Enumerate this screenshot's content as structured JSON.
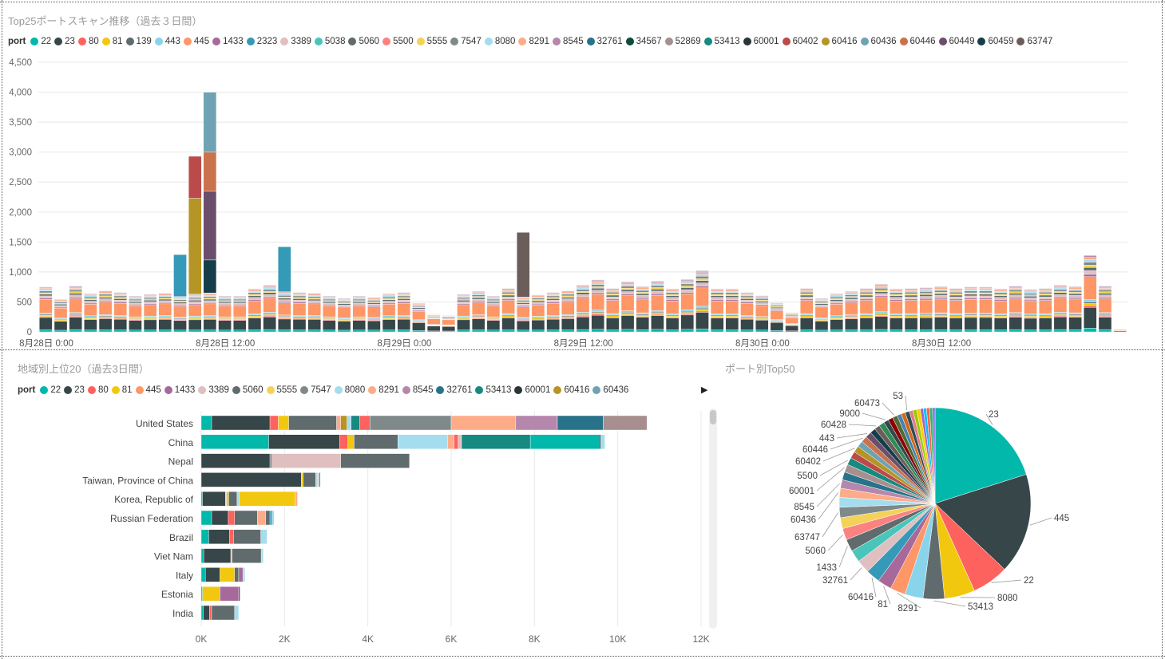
{
  "colors": {
    "22": "#01b8aa",
    "23": "#374649",
    "80": "#fd625e",
    "81": "#f2c80f",
    "139": "#5f6b6d",
    "443": "#8ad4eb",
    "445": "#fe9666",
    "1433": "#a66999",
    "2323": "#3599b8",
    "3389": "#dfbfbf",
    "5038": "#4ac5bb",
    "5060": "#5f6b6d",
    "5500": "#fb8281",
    "5555": "#f4d25a",
    "7547": "#7f898a",
    "8080": "#a4ddee",
    "8291": "#fdab89",
    "8545": "#b687ac",
    "32761": "#28738a",
    "34567": "#0d4b3e",
    "52869": "#a78f8f",
    "53413": "#168980",
    "60001": "#293537",
    "60402": "#bb4a4a",
    "60416": "#b59525",
    "60436": "#6fa3b3",
    "60446": "#c9724b",
    "60449": "#6b4e6b",
    "60459": "#163e4a",
    "63747": "#6b5d5a"
  },
  "chart_data": [
    {
      "type": "bar",
      "title": "Top25ポートスキャン推移（過去３日間）",
      "legend_title": "port",
      "legend": [
        "22",
        "23",
        "80",
        "81",
        "139",
        "443",
        "445",
        "1433",
        "2323",
        "3389",
        "5038",
        "5060",
        "5500",
        "5555",
        "7547",
        "8080",
        "8291",
        "8545",
        "32761",
        "34567",
        "52869",
        "53413",
        "60001",
        "60402",
        "60416",
        "60436",
        "60446",
        "60449",
        "60459",
        "63747"
      ],
      "x_ticks": [
        "8月28日 0:00",
        "8月28日 12:00",
        "8月29日 0:00",
        "8月29日 12:00",
        "8月30日 0:00",
        "8月30日 12:00"
      ],
      "y_ticks": [
        "0",
        "500",
        "1,000",
        "1,500",
        "2,000",
        "2,500",
        "3,000",
        "3,500",
        "4,000",
        "4,500"
      ],
      "ylim": [
        0,
        4500
      ],
      "totals": [
        750,
        550,
        770,
        640,
        690,
        660,
        600,
        630,
        650,
        1290,
        2930,
        4000,
        600,
        600,
        720,
        780,
        1420,
        660,
        650,
        600,
        560,
        600,
        580,
        640,
        660,
        480,
        300,
        280,
        630,
        680,
        600,
        730,
        1660,
        620,
        660,
        690,
        780,
        870,
        730,
        840,
        760,
        850,
        720,
        880,
        1020,
        720,
        720,
        660,
        610,
        490,
        330,
        730,
        560,
        640,
        680,
        730,
        800,
        720,
        730,
        740,
        760,
        730,
        750,
        750,
        720,
        770,
        710,
        730,
        780,
        760,
        1280,
        770,
        50
      ],
      "spikes": [
        {
          "bar": 9,
          "series": "2323",
          "value": 700
        },
        {
          "bar": 10,
          "series": "60416",
          "value": 1600
        },
        {
          "bar": 10,
          "series": "60402",
          "value": 700
        },
        {
          "bar": 11,
          "series": "60459",
          "value": 550
        },
        {
          "bar": 11,
          "series": "60449",
          "value": 1150
        },
        {
          "bar": 11,
          "series": "60446",
          "value": 650
        },
        {
          "bar": 11,
          "series": "60436",
          "value": 1000
        },
        {
          "bar": 16,
          "series": "2323",
          "value": 750
        },
        {
          "bar": 32,
          "series": "63747",
          "value": 1080
        }
      ]
    },
    {
      "type": "bar",
      "orientation": "horizontal",
      "title": "地域別上位20（過去3日間）",
      "legend_title": "port",
      "legend": [
        "22",
        "23",
        "80",
        "81",
        "445",
        "1433",
        "3389",
        "5060",
        "5555",
        "7547",
        "8080",
        "8291",
        "8545",
        "32761",
        "53413",
        "60001",
        "60416",
        "60436"
      ],
      "categories": [
        "United States",
        "China",
        "Nepal",
        "Taiwan, Province of China",
        "Korea, Republic of",
        "Russian Federation",
        "Brazil",
        "Viet Nam",
        "Italy",
        "Estonia",
        "India"
      ],
      "x_ticks": [
        "0K",
        "2K",
        "4K",
        "6K",
        "8K",
        "10K",
        "12K"
      ],
      "xlim": [
        0,
        12000
      ],
      "stacks": [
        [
          [
            "22",
            250
          ],
          [
            "23",
            1400
          ],
          [
            "80",
            200
          ],
          [
            "81",
            250
          ],
          [
            "5060",
            1150
          ],
          [
            "8291",
            100
          ],
          [
            "60416",
            150
          ],
          [
            "8080",
            100
          ],
          [
            "53413",
            200
          ],
          [
            "80",
            250
          ],
          [
            "7547",
            1950
          ],
          [
            "8291",
            1550
          ],
          [
            "8545",
            1000
          ],
          [
            "32761",
            1100
          ],
          [
            "52869",
            1050
          ]
        ],
        [
          [
            "22",
            1620
          ],
          [
            "23",
            1700
          ],
          [
            "80",
            200
          ],
          [
            "81",
            150
          ],
          [
            "5060",
            1050
          ],
          [
            "8080",
            1200
          ],
          [
            "8291",
            150
          ],
          [
            "80",
            100
          ],
          [
            "3389",
            80
          ],
          [
            "53413",
            1650
          ],
          [
            "22",
            1650
          ],
          [
            "23",
            40
          ],
          [
            "8080",
            100
          ]
        ],
        [
          [
            "23",
            1650
          ],
          [
            "7547",
            50
          ],
          [
            "3389",
            1650
          ],
          [
            "5060",
            1650
          ]
        ],
        [
          [
            "23",
            2400
          ],
          [
            "81",
            50
          ],
          [
            "5060",
            300
          ],
          [
            "8080",
            50
          ],
          [
            "3389",
            30
          ],
          [
            "2323",
            30
          ]
        ],
        [
          [
            "22",
            30
          ],
          [
            "23",
            550
          ],
          [
            "3389",
            30
          ],
          [
            "81",
            50
          ],
          [
            "5060",
            200
          ],
          [
            "8080",
            50
          ],
          [
            "81",
            1350
          ],
          [
            "8291",
            50
          ]
        ],
        [
          [
            "22",
            250
          ],
          [
            "23",
            400
          ],
          [
            "80",
            150
          ],
          [
            "5060",
            550
          ],
          [
            "8291",
            200
          ],
          [
            "5060",
            100
          ],
          [
            "2323",
            50
          ],
          [
            "8080",
            50
          ]
        ],
        [
          [
            "22",
            180
          ],
          [
            "23",
            500
          ],
          [
            "80",
            100
          ],
          [
            "5060",
            650
          ],
          [
            "8080",
            150
          ]
        ],
        [
          [
            "22",
            60
          ],
          [
            "23",
            650
          ],
          [
            "8291",
            30
          ],
          [
            "5060",
            700
          ],
          [
            "8080",
            50
          ]
        ],
        [
          [
            "22",
            100
          ],
          [
            "23",
            350
          ],
          [
            "81",
            350
          ],
          [
            "5060",
            100
          ],
          [
            "1433",
            100
          ],
          [
            "8080",
            50
          ]
        ],
        [
          [
            "22",
            30
          ],
          [
            "81",
            420
          ],
          [
            "1433",
            450
          ],
          [
            "23",
            30
          ]
        ],
        [
          [
            "22",
            50
          ],
          [
            "23",
            150
          ],
          [
            "80",
            50
          ],
          [
            "5060",
            550
          ],
          [
            "8080",
            100
          ]
        ]
      ]
    },
    {
      "type": "pie",
      "title": "ポート別Top50",
      "labels": [
        "23",
        "445",
        "22",
        "8080",
        "53413",
        "8291",
        "81",
        "60416",
        "32761",
        "1433",
        "5060",
        "63747",
        "60436",
        "8545",
        "60001",
        "5500",
        "60402",
        "60446",
        "443",
        "60428",
        "9000",
        "60473",
        "53"
      ],
      "slices": [
        {
          "label": "23",
          "value": 19.5,
          "color": "#01b8aa"
        },
        {
          "label": "445",
          "value": 16.5,
          "color": "#374649"
        },
        {
          "label": "22",
          "value": 6.0,
          "color": "#fd625e"
        },
        {
          "label": "8080",
          "value": 5.0,
          "color": "#f2c80f"
        },
        {
          "label": "53413",
          "value": 3.5,
          "color": "#5f6b6d"
        },
        {
          "label": "",
          "value": 3.0,
          "color": "#8ad4eb"
        },
        {
          "label": "8291",
          "value": 2.5,
          "color": "#fe9666"
        },
        {
          "label": "81",
          "value": 2.3,
          "color": "#a66999"
        },
        {
          "label": "60416",
          "value": 2.3,
          "color": "#3599b8"
        },
        {
          "label": "32761",
          "value": 2.2,
          "color": "#dfbfbf"
        },
        {
          "label": "",
          "value": 2.0,
          "color": "#4ac5bb"
        },
        {
          "label": "1433",
          "value": 2.0,
          "color": "#5f6b6d"
        },
        {
          "label": "5060",
          "value": 1.9,
          "color": "#fb8281"
        },
        {
          "label": "",
          "value": 1.8,
          "color": "#f4d25a"
        },
        {
          "label": "63747",
          "value": 1.7,
          "color": "#7f898a"
        },
        {
          "label": "",
          "value": 1.6,
          "color": "#a4ddee"
        },
        {
          "label": "60436",
          "value": 1.5,
          "color": "#fdab89"
        },
        {
          "label": "8545",
          "value": 1.4,
          "color": "#b687ac"
        },
        {
          "label": "",
          "value": 1.3,
          "color": "#28738a"
        },
        {
          "label": "60001",
          "value": 1.3,
          "color": "#a78f8f"
        },
        {
          "label": "5500",
          "value": 1.2,
          "color": "#168980"
        },
        {
          "label": "",
          "value": 1.1,
          "color": "#bb4a4a"
        },
        {
          "label": "60402",
          "value": 1.1,
          "color": "#b59525"
        },
        {
          "label": "",
          "value": 1.0,
          "color": "#6fa3b3"
        },
        {
          "label": "60446",
          "value": 1.0,
          "color": "#c9724b"
        },
        {
          "label": "443",
          "value": 1.0,
          "color": "#6b4e6b"
        },
        {
          "label": "",
          "value": 0.9,
          "color": "#163e4a"
        },
        {
          "label": "60428",
          "value": 0.9,
          "color": "#6b5d5a"
        },
        {
          "label": "",
          "value": 0.9,
          "color": "#2e8b57"
        },
        {
          "label": "9000",
          "value": 0.8,
          "color": "#374649"
        },
        {
          "label": "",
          "value": 0.8,
          "color": "#8b0000"
        },
        {
          "label": "60473",
          "value": 0.8,
          "color": "#556b2f"
        },
        {
          "label": "",
          "value": 0.7,
          "color": "#4682b4"
        },
        {
          "label": "",
          "value": 0.7,
          "color": "#d2691e"
        },
        {
          "label": "53",
          "value": 0.7,
          "color": "#2f4f4f"
        },
        {
          "label": "",
          "value": 0.6,
          "color": "#e07b91"
        },
        {
          "label": "",
          "value": 0.6,
          "color": "#99cc00"
        },
        {
          "label": "",
          "value": 0.6,
          "color": "#ffcc00"
        },
        {
          "label": "",
          "value": 0.5,
          "color": "#9966cc"
        },
        {
          "label": "",
          "value": 0.5,
          "color": "#00bfff"
        },
        {
          "label": "",
          "value": 0.5,
          "color": "#ff6347"
        },
        {
          "label": "",
          "value": 0.5,
          "color": "#3cb371"
        },
        {
          "label": "",
          "value": 0.4,
          "color": "#7b68ee"
        }
      ]
    }
  ]
}
